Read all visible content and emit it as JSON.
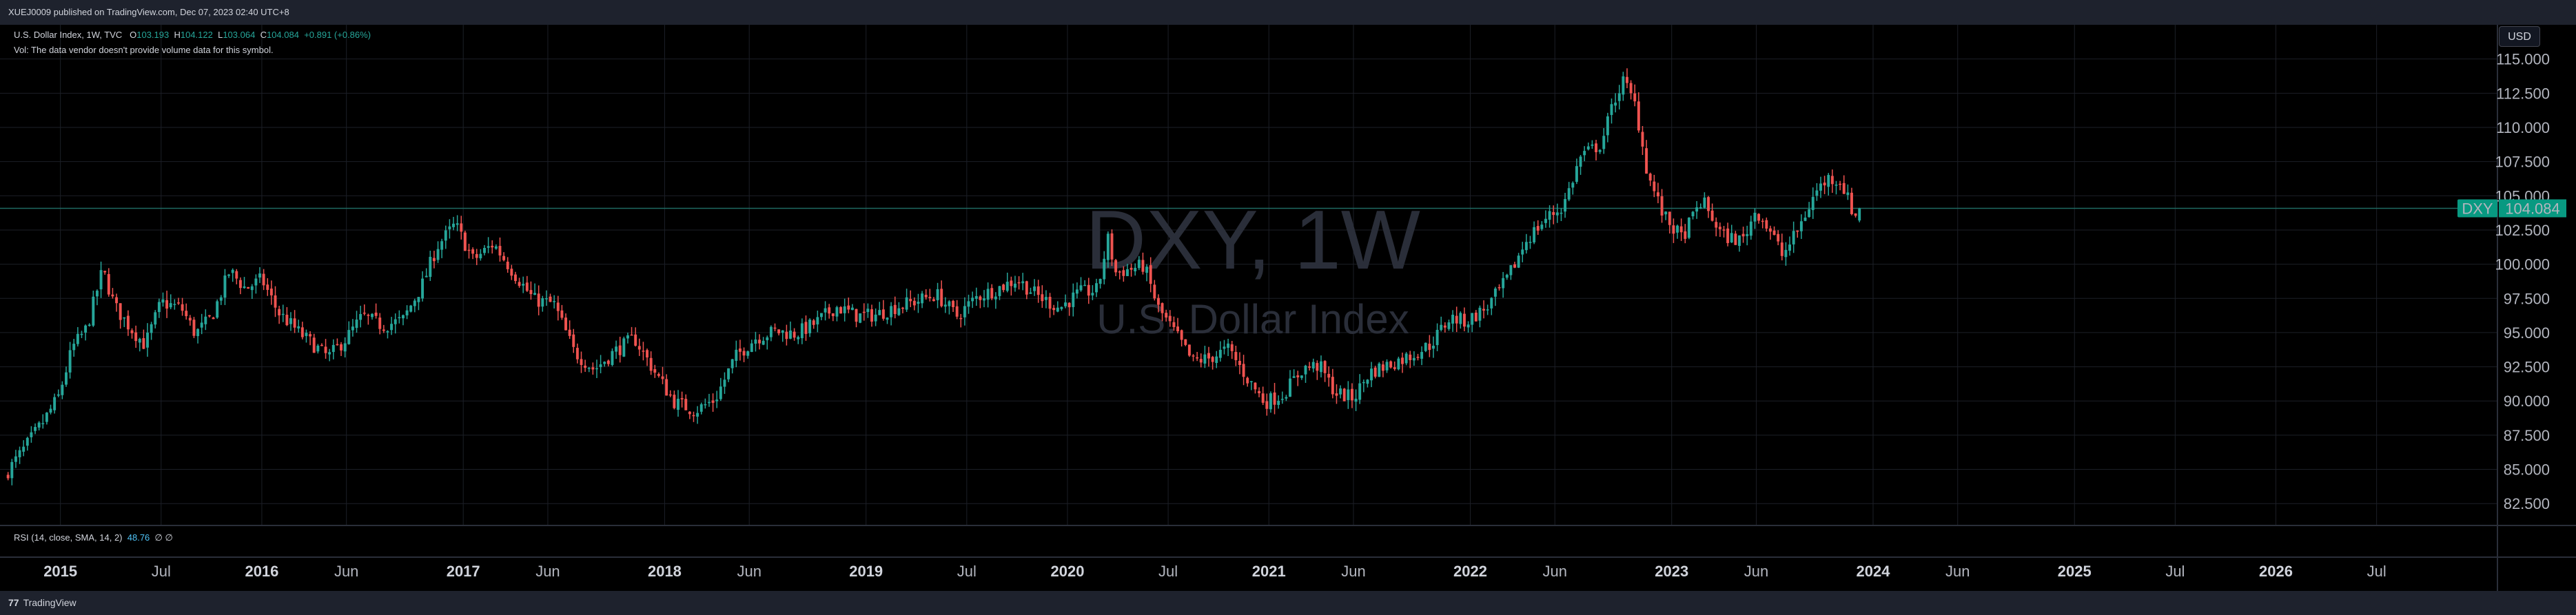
{
  "header": {
    "publish_line": "XUEJ0009 published on TradingView.com, Dec 07, 2023 02:40 UTC+8"
  },
  "legend": {
    "symbol_line": "U.S. Dollar Index, 1W, TVC",
    "open_label": "O",
    "open_value": "103.193",
    "high_label": "H",
    "high_value": "104.122",
    "low_label": "L",
    "low_value": "103.064",
    "close_label": "C",
    "close_value": "104.084",
    "change_value": "+0.891 (+0.86%)",
    "volume_note": "Vol: The data vendor doesn't provide volume data for this symbol."
  },
  "currency_badge": "USD",
  "watermark": {
    "symbol": "DXY, 1W",
    "name": "U.S. Dollar Index"
  },
  "rsi": {
    "label": "RSI (14, close, SMA, 14, 2)",
    "value": "48.76",
    "extra": "∅  ∅"
  },
  "last_price": {
    "ticker": "DXY",
    "value": "104.084",
    "value_num": 104.084
  },
  "colors": {
    "up": "#26a69a",
    "down": "#ef5350",
    "background": "#000000",
    "grid": "#1c1f27",
    "last_price_line": "#1e6b63"
  },
  "footer": {
    "brand": "TradingView",
    "logo_glyph": "77"
  },
  "chart_data": {
    "type": "candlestick",
    "interval": "1W",
    "y_axis": {
      "ticks": [
        115.0,
        112.5,
        110.0,
        107.5,
        105.0,
        102.5,
        100.0,
        97.5,
        95.0,
        92.5,
        90.0,
        87.5,
        85.0,
        82.5
      ],
      "tick_labels": [
        "115.000",
        "112.500",
        "110.000",
        "107.500",
        "105.000",
        "102.500",
        "100.000",
        "97.500",
        "95.000",
        "92.500",
        "90.000",
        "87.500",
        "85.000",
        "82.500"
      ],
      "range": [
        80.9,
        117.5
      ],
      "position": "right"
    },
    "x_axis": {
      "range": [
        2014.7,
        2027.1
      ],
      "ticks": [
        {
          "t": 2015.0,
          "label": "2015",
          "year": true
        },
        {
          "t": 2015.5,
          "label": "Jul",
          "year": false
        },
        {
          "t": 2016.0,
          "label": "2016",
          "year": true
        },
        {
          "t": 2016.42,
          "label": "Jun",
          "year": false
        },
        {
          "t": 2017.0,
          "label": "2017",
          "year": true
        },
        {
          "t": 2017.42,
          "label": "Jun",
          "year": false
        },
        {
          "t": 2018.0,
          "label": "2018",
          "year": true
        },
        {
          "t": 2018.42,
          "label": "Jun",
          "year": false
        },
        {
          "t": 2019.0,
          "label": "2019",
          "year": true
        },
        {
          "t": 2019.5,
          "label": "Jul",
          "year": false
        },
        {
          "t": 2020.0,
          "label": "2020",
          "year": true
        },
        {
          "t": 2020.5,
          "label": "Jul",
          "year": false
        },
        {
          "t": 2021.0,
          "label": "2021",
          "year": true
        },
        {
          "t": 2021.42,
          "label": "Jun",
          "year": false
        },
        {
          "t": 2022.0,
          "label": "2022",
          "year": true
        },
        {
          "t": 2022.42,
          "label": "Jun",
          "year": false
        },
        {
          "t": 2023.0,
          "label": "2023",
          "year": true
        },
        {
          "t": 2023.42,
          "label": "Jun",
          "year": false
        },
        {
          "t": 2024.0,
          "label": "2024",
          "year": true
        },
        {
          "t": 2024.42,
          "label": "Jun",
          "year": false
        },
        {
          "t": 2025.0,
          "label": "2025",
          "year": true
        },
        {
          "t": 2025.5,
          "label": "Jul",
          "year": false
        },
        {
          "t": 2026.0,
          "label": "2026",
          "year": true
        },
        {
          "t": 2026.5,
          "label": "Jul",
          "year": false
        }
      ]
    },
    "grid": true,
    "close_anchors": [
      [
        2014.74,
        84.9
      ],
      [
        2014.82,
        86.5
      ],
      [
        2014.92,
        88.6
      ],
      [
        2014.99,
        90.3
      ],
      [
        2015.06,
        93.9
      ],
      [
        2015.13,
        95.3
      ],
      [
        2015.21,
        99.6
      ],
      [
        2015.27,
        96.9
      ],
      [
        2015.35,
        95.3
      ],
      [
        2015.42,
        94.1
      ],
      [
        2015.5,
        97.2
      ],
      [
        2015.6,
        96.8
      ],
      [
        2015.67,
        94.9
      ],
      [
        2015.75,
        96.1
      ],
      [
        2015.84,
        99.5
      ],
      [
        2015.92,
        98.2
      ],
      [
        2016.0,
        98.9
      ],
      [
        2016.08,
        96.5
      ],
      [
        2016.2,
        94.8
      ],
      [
        2016.33,
        93.2
      ],
      [
        2016.42,
        94.6
      ],
      [
        2016.5,
        96.2
      ],
      [
        2016.6,
        95.5
      ],
      [
        2016.7,
        95.9
      ],
      [
        2016.8,
        98.6
      ],
      [
        2016.87,
        101.3
      ],
      [
        2016.96,
        102.9
      ],
      [
        2017.05,
        100.3
      ],
      [
        2017.15,
        101.5
      ],
      [
        2017.25,
        99.4
      ],
      [
        2017.35,
        97.4
      ],
      [
        2017.45,
        97.1
      ],
      [
        2017.55,
        93.6
      ],
      [
        2017.65,
        92.3
      ],
      [
        2017.75,
        93.6
      ],
      [
        2017.85,
        94.6
      ],
      [
        2017.96,
        91.9
      ],
      [
        2018.05,
        89.9
      ],
      [
        2018.15,
        89.3
      ],
      [
        2018.25,
        90.1
      ],
      [
        2018.35,
        93.2
      ],
      [
        2018.45,
        94.6
      ],
      [
        2018.55,
        95.1
      ],
      [
        2018.65,
        94.9
      ],
      [
        2018.75,
        95.7
      ],
      [
        2018.85,
        96.9
      ],
      [
        2018.96,
        96.2
      ],
      [
        2019.05,
        96.3
      ],
      [
        2019.15,
        96.9
      ],
      [
        2019.25,
        97.3
      ],
      [
        2019.35,
        97.8
      ],
      [
        2019.45,
        96.2
      ],
      [
        2019.55,
        97.6
      ],
      [
        2019.65,
        98.2
      ],
      [
        2019.75,
        98.9
      ],
      [
        2019.85,
        97.7
      ],
      [
        2019.96,
        96.8
      ],
      [
        2020.06,
        97.9
      ],
      [
        2020.15,
        98.1
      ],
      [
        2020.2,
        101.9
      ],
      [
        2020.24,
        99.4
      ],
      [
        2020.3,
        99.6
      ],
      [
        2020.38,
        99.9
      ],
      [
        2020.45,
        96.8
      ],
      [
        2020.55,
        94.6
      ],
      [
        2020.62,
        92.9
      ],
      [
        2020.7,
        93.1
      ],
      [
        2020.8,
        93.8
      ],
      [
        2020.9,
        91.5
      ],
      [
        2020.98,
        89.9
      ],
      [
        2021.07,
        90.5
      ],
      [
        2021.17,
        92.4
      ],
      [
        2021.25,
        92.6
      ],
      [
        2021.33,
        90.6
      ],
      [
        2021.42,
        90.2
      ],
      [
        2021.5,
        92.1
      ],
      [
        2021.6,
        92.7
      ],
      [
        2021.7,
        93.3
      ],
      [
        2021.8,
        94.1
      ],
      [
        2021.9,
        96.1
      ],
      [
        2021.98,
        95.8
      ],
      [
        2022.08,
        96.8
      ],
      [
        2022.18,
        98.8
      ],
      [
        2022.28,
        101.8
      ],
      [
        2022.38,
        103.4
      ],
      [
        2022.46,
        104.2
      ],
      [
        2022.55,
        107.9
      ],
      [
        2022.65,
        108.8
      ],
      [
        2022.72,
        112.2
      ],
      [
        2022.76,
        113.4
      ],
      [
        2022.82,
        111.6
      ],
      [
        2022.88,
        106.6
      ],
      [
        2022.96,
        103.5
      ],
      [
        2023.05,
        101.9
      ],
      [
        2023.15,
        104.7
      ],
      [
        2023.25,
        102.1
      ],
      [
        2023.35,
        101.7
      ],
      [
        2023.42,
        104.0
      ],
      [
        2023.5,
        102.2
      ],
      [
        2023.55,
        100.6
      ],
      [
        2023.62,
        102.3
      ],
      [
        2023.72,
        105.4
      ],
      [
        2023.78,
        106.3
      ],
      [
        2023.84,
        106.1
      ],
      [
        2023.9,
        103.8
      ],
      [
        2023.93,
        103.2
      ],
      [
        2023.935,
        104.084
      ]
    ]
  }
}
